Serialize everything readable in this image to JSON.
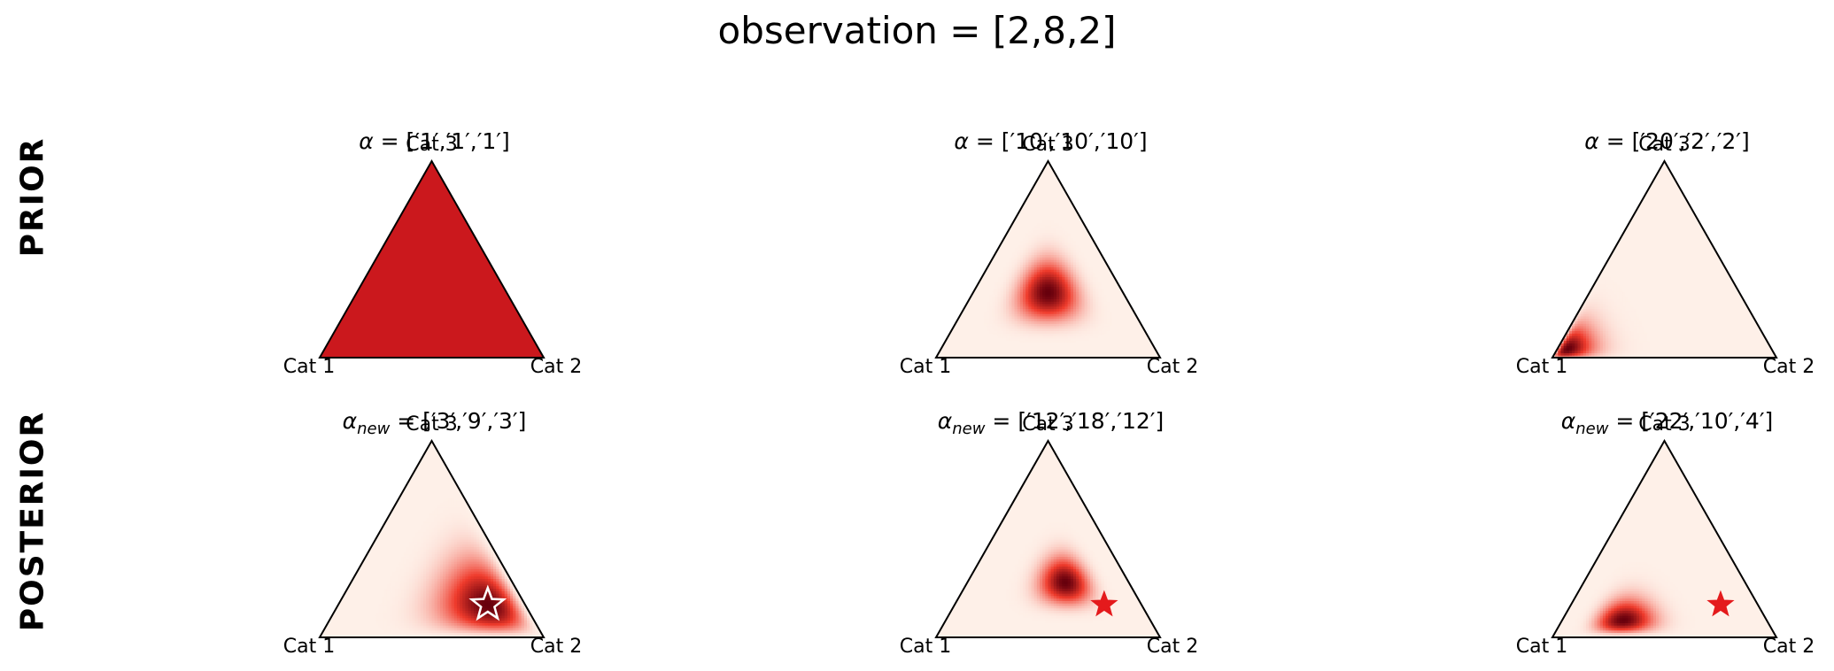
{
  "title": "observation = [2,8,2]",
  "row_labels": {
    "prior": "PRIOR",
    "posterior": "POSTERIOR"
  },
  "colors": {
    "density_low": "#fef0e8",
    "density_mid": "#ef3b2c",
    "density_high": "#67000d",
    "marker": "#e41a1c",
    "edge": "#000000"
  },
  "chart_data": [
    {
      "type": "heatmap",
      "row": "PRIOR",
      "title_prefix": "α",
      "title_values": "['1','1','1']",
      "alpha": [
        1,
        1,
        1
      ],
      "vertex_labels": [
        "Cat 1",
        "Cat 2",
        "Cat 3"
      ],
      "marker": null
    },
    {
      "type": "heatmap",
      "row": "PRIOR",
      "title_prefix": "α",
      "title_values": "['10','10','10']",
      "alpha": [
        10,
        10,
        10
      ],
      "vertex_labels": [
        "Cat 1",
        "Cat 2",
        "Cat 3"
      ],
      "marker": null
    },
    {
      "type": "heatmap",
      "row": "PRIOR",
      "title_prefix": "α",
      "title_values": "['20','2','2']",
      "alpha": [
        20,
        2,
        2
      ],
      "vertex_labels": [
        "Cat 1",
        "Cat 2",
        "Cat 3"
      ],
      "marker": null
    },
    {
      "type": "heatmap",
      "row": "POSTERIOR",
      "title_prefix": "α",
      "title_sub": "new",
      "title_values": "['3','9','3']",
      "alpha": [
        3,
        9,
        3
      ],
      "vertex_labels": [
        "Cat 1",
        "Cat 2",
        "Cat 3"
      ],
      "marker": {
        "p": [
          0.1667,
          0.6667,
          0.1667
        ],
        "style": "hollow"
      }
    },
    {
      "type": "heatmap",
      "row": "POSTERIOR",
      "title_prefix": "α",
      "title_sub": "new",
      "title_values": "['12','18','12']",
      "alpha": [
        12,
        18,
        12
      ],
      "vertex_labels": [
        "Cat 1",
        "Cat 2",
        "Cat 3"
      ],
      "marker": {
        "p": [
          0.1667,
          0.6667,
          0.1667
        ],
        "style": "filled"
      }
    },
    {
      "type": "heatmap",
      "row": "POSTERIOR",
      "title_prefix": "α",
      "title_sub": "new",
      "title_values": "['22','10','4']",
      "alpha": [
        22,
        10,
        4
      ],
      "vertex_labels": [
        "Cat 1",
        "Cat 2",
        "Cat 3"
      ],
      "marker": {
        "p": [
          0.1667,
          0.6667,
          0.1667
        ],
        "style": "filled"
      }
    }
  ]
}
